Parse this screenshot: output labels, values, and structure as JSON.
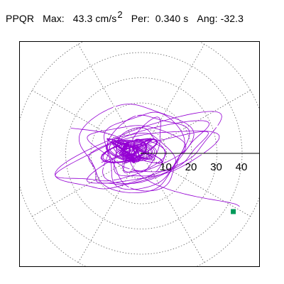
{
  "header": {
    "station": "PPQR",
    "max_label": "Max:",
    "max_value": "43.3 cm/s",
    "max_exp": "2",
    "per_label": "Per:",
    "per_value": "0.340 s",
    "ang_label": "Ang:",
    "ang_value": "-32.3"
  },
  "chart_data": {
    "type": "line",
    "title": "",
    "xlabel": "",
    "ylabel": "",
    "polar_grid": true,
    "radial_rings": [
      10,
      20,
      30,
      40
    ],
    "radial_ticks": [
      "10",
      "20",
      "30",
      "40"
    ],
    "rmax": 50,
    "xlim": [
      -50,
      50
    ],
    "ylim": [
      -50,
      50
    ],
    "max_amplitude": 43.3,
    "angle_deg": -32.3,
    "end_point": {
      "x": 36.5,
      "y": -23.1
    },
    "colors": {
      "trace": "#9400d3",
      "marker": "#009a5a",
      "grid": "#666666"
    }
  }
}
